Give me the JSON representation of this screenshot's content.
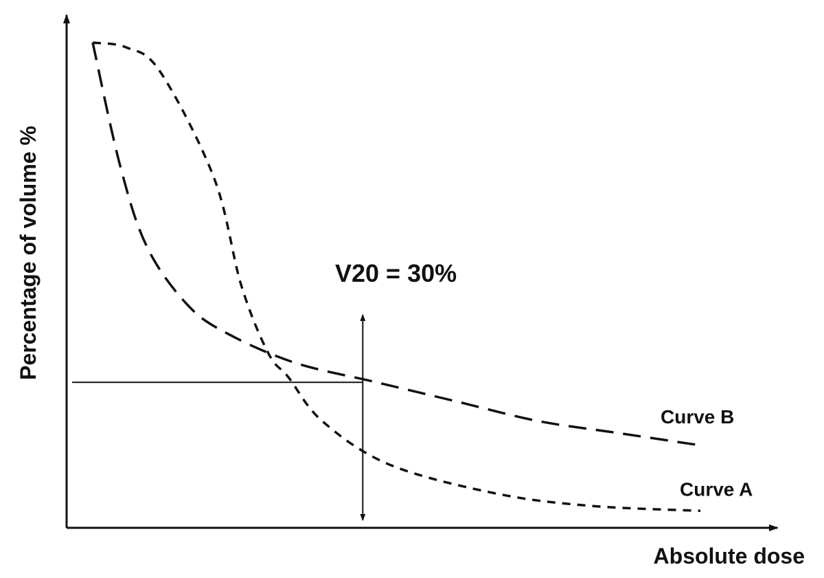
{
  "chart_data": {
    "type": "line",
    "title": "",
    "xlabel": "Absolute dose",
    "ylabel": "Percentage of volume %",
    "annotation": "V20 = 30%",
    "grid": false,
    "series": [
      {
        "name": "Curve A",
        "points": [
          [
            0,
            100
          ],
          [
            2.5,
            99
          ],
          [
            5,
            94
          ],
          [
            9,
            72
          ],
          [
            11,
            50
          ],
          [
            13,
            36
          ],
          [
            14.5,
            31
          ],
          [
            17,
            22
          ],
          [
            22,
            13
          ],
          [
            30,
            7
          ],
          [
            37,
            4.5
          ],
          [
            45,
            3.5
          ]
        ]
      },
      {
        "name": "Curve B",
        "points": [
          [
            0,
            100
          ],
          [
            2,
            75
          ],
          [
            4,
            58
          ],
          [
            7,
            46
          ],
          [
            10,
            40
          ],
          [
            15,
            34
          ],
          [
            21,
            30
          ],
          [
            27,
            26
          ],
          [
            33,
            22
          ],
          [
            39,
            19.5
          ],
          [
            45,
            17
          ]
        ]
      }
    ],
    "marker": {
      "x": 20,
      "y": 30
    }
  }
}
